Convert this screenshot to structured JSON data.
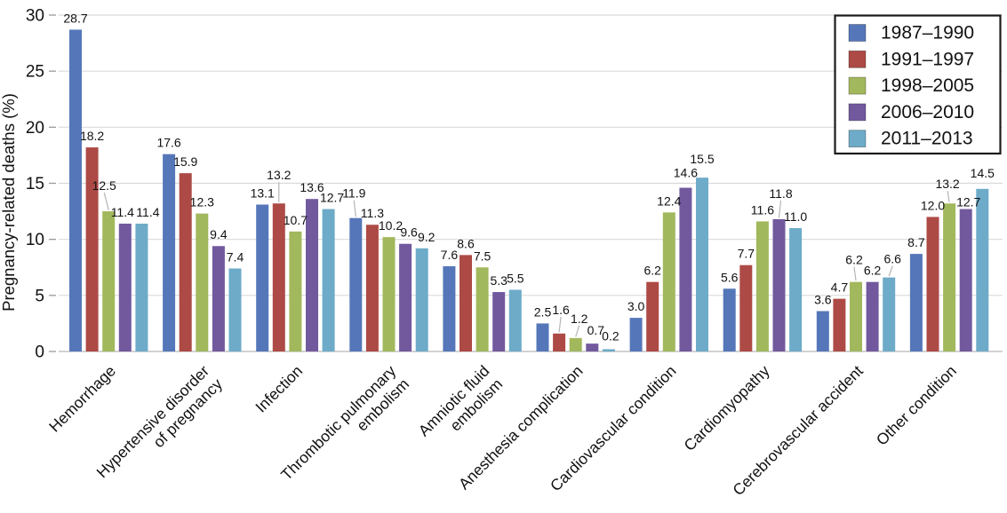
{
  "figure": {
    "kind": "grouped-bar-chart",
    "background": "#ffffff"
  },
  "chart_data": {
    "type": "bar",
    "title": "",
    "xlabel": "",
    "ylabel": "Pregnancy-related deaths (%)",
    "ylim": [
      0,
      30
    ],
    "yticks": [
      0,
      5,
      10,
      15,
      20,
      25,
      30
    ],
    "grid": true,
    "grid_axis": "y",
    "legend_position": "top-right",
    "bar_value_labels": true,
    "value_label_format": "0.0",
    "categories": [
      "Hemorrhage",
      "Hypertensive disorder\nof pregnancy",
      "Infection",
      "Thrombotic pulmonary\nembolism",
      "Amniotic fluid\nembolism",
      "Anesthesia complication",
      "Cardiovascular condition",
      "Cardiomyopathy",
      "Cerebrovascular accident",
      "Other condition"
    ],
    "series": [
      {
        "name": "1987–1990",
        "color": "#5577b9",
        "values": [
          28.7,
          17.6,
          13.1,
          11.9,
          7.6,
          2.5,
          3.0,
          5.6,
          3.6,
          8.7
        ]
      },
      {
        "name": "1991–1997",
        "color": "#ad4a45",
        "values": [
          18.2,
          15.9,
          13.2,
          11.3,
          8.6,
          1.6,
          6.2,
          7.7,
          4.7,
          12.0
        ]
      },
      {
        "name": "1998–2005",
        "color": "#a2b85c",
        "values": [
          12.5,
          12.3,
          10.7,
          10.2,
          7.5,
          1.2,
          12.4,
          11.6,
          6.2,
          13.2
        ]
      },
      {
        "name": "2006–2010",
        "color": "#72599e",
        "values": [
          11.4,
          9.4,
          13.6,
          9.6,
          5.3,
          0.7,
          14.6,
          11.8,
          6.2,
          12.7
        ]
      },
      {
        "name": "2011–2013",
        "color": "#6dabc9",
        "values": [
          11.4,
          7.4,
          12.7,
          9.2,
          5.5,
          0.2,
          15.5,
          11.0,
          6.6,
          14.5
        ]
      }
    ]
  }
}
